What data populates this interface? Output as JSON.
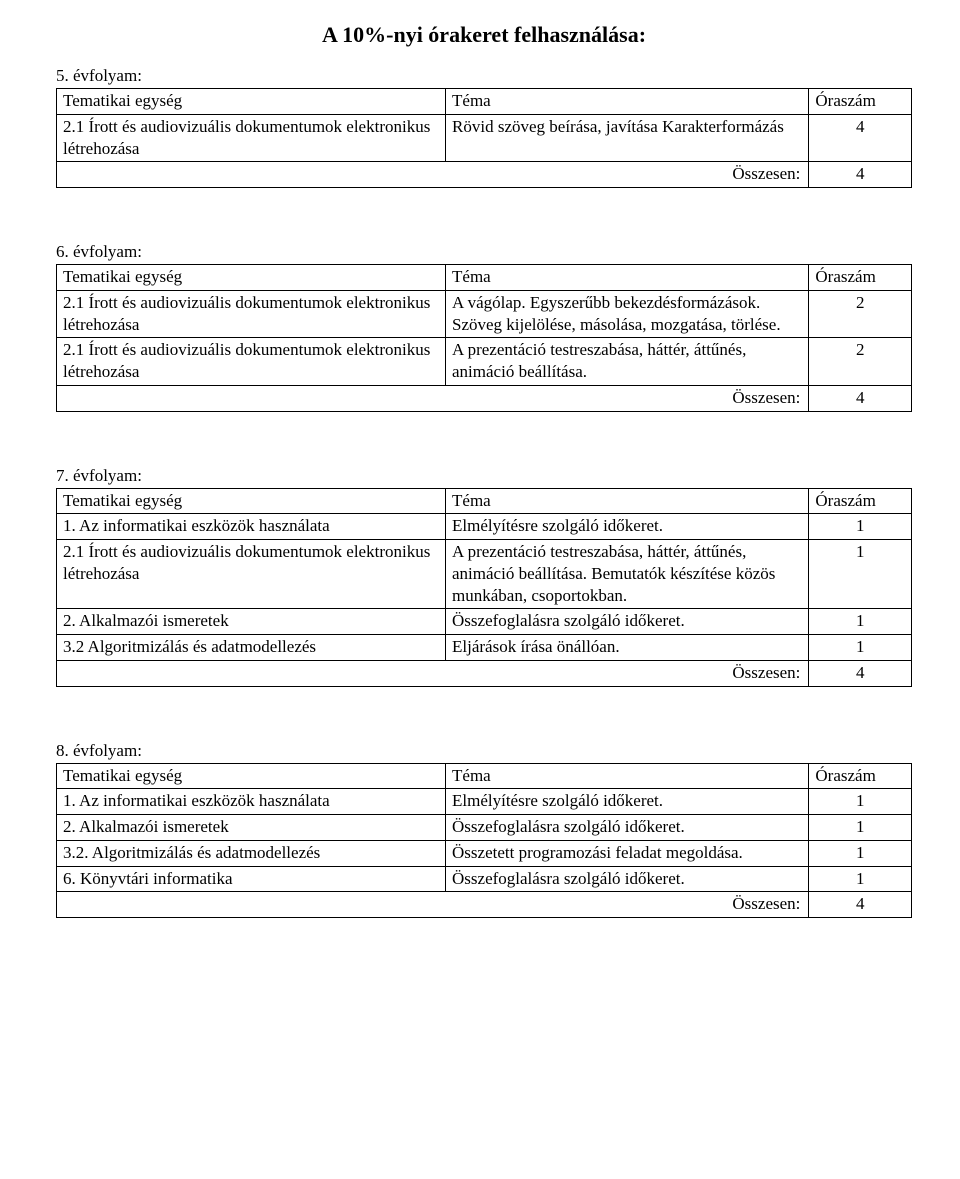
{
  "title": "A 10%-nyi órakeret felhasználása:",
  "headers": {
    "c1": "Tematikai egység",
    "c2": "Téma",
    "c3": "Óraszám"
  },
  "sum_label": "Összesen:",
  "s5": {
    "label": "5. évfolyam:",
    "r1_c1": "2.1 Írott és audiovizuális dokumentumok elektronikus létrehozása",
    "r1_c2": "Rövid szöveg beírása, javítása Karakterformázás",
    "r1_c3": "4",
    "sum": "4"
  },
  "s6": {
    "label": "6. évfolyam:",
    "r1_c1": "2.1 Írott és audiovizuális dokumentumok elektronikus létrehozása",
    "r1_c2": "A vágólap.\nEgyszerűbb bekezdésformázások. Szöveg kijelölése, másolása, mozgatása, törlése.",
    "r1_c3": "2",
    "r2_c1": "2.1 Írott és audiovizuális dokumentumok elektronikus létrehozása",
    "r2_c2": "A prezentáció testreszabása, háttér, áttűnés, animáció beállítása.",
    "r2_c3": "2",
    "sum": "4"
  },
  "s7": {
    "label": "7. évfolyam:",
    "r1_c1": "1. Az informatikai eszközök használata",
    "r1_c2": "Elmélyítésre szolgáló időkeret.",
    "r1_c3": "1",
    "r2_c1": "2.1 Írott és audiovizuális dokumentumok elektronikus létrehozása",
    "r2_c2": "A prezentáció testreszabása, háttér, áttűnés, animáció beállítása. Bemutatók készítése közös munkában, csoportokban.",
    "r2_c3": "1",
    "r3_c1": "2. Alkalmazói ismeretek",
    "r3_c2": "Összefoglalásra szolgáló időkeret.",
    "r3_c3": "1",
    "r4_c1": "3.2 Algoritmizálás és adatmodellezés",
    "r4_c2": "Eljárások írása önállóan.",
    "r4_c3": "1",
    "sum": "4"
  },
  "s8": {
    "label": "8. évfolyam:",
    "r1_c1": "1. Az informatikai eszközök használata",
    "r1_c2": "Elmélyítésre szolgáló időkeret.",
    "r1_c3": "1",
    "r2_c1": "2. Alkalmazói ismeretek",
    "r2_c2": "Összefoglalásra szolgáló időkeret.",
    "r2_c3": "1",
    "r3_c1": "3.2. Algoritmizálás és adatmodellezés",
    "r3_c2": "Összetett programozási feladat megoldása.",
    "r3_c3": "1",
    "r4_c1": "6. Könyvtári informatika",
    "r4_c2": "Összefoglalásra szolgáló időkeret.",
    "r4_c3": "1",
    "sum": "4"
  }
}
